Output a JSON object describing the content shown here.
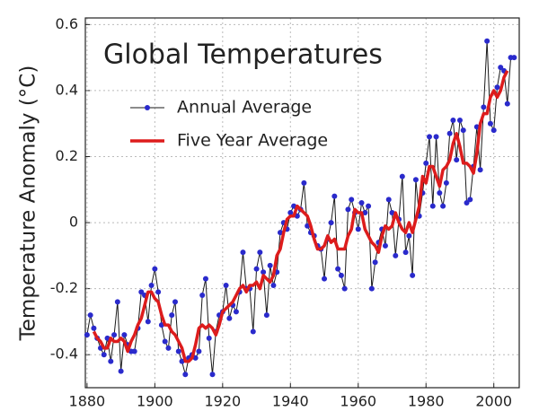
{
  "chart_data": {
    "type": "line",
    "title": "Global Temperatures",
    "y_label": "Temperature Anomaly (°C)",
    "x": [
      1880,
      1881,
      1882,
      1883,
      1884,
      1885,
      1886,
      1887,
      1888,
      1889,
      1890,
      1891,
      1892,
      1893,
      1894,
      1895,
      1896,
      1897,
      1898,
      1899,
      1900,
      1901,
      1902,
      1903,
      1904,
      1905,
      1906,
      1907,
      1908,
      1909,
      1910,
      1911,
      1912,
      1913,
      1914,
      1915,
      1916,
      1917,
      1918,
      1919,
      1920,
      1921,
      1922,
      1923,
      1924,
      1925,
      1926,
      1927,
      1928,
      1929,
      1930,
      1931,
      1932,
      1933,
      1934,
      1935,
      1936,
      1937,
      1938,
      1939,
      1940,
      1941,
      1942,
      1943,
      1944,
      1945,
      1946,
      1947,
      1948,
      1949,
      1950,
      1951,
      1952,
      1953,
      1954,
      1955,
      1956,
      1957,
      1958,
      1959,
      1960,
      1961,
      1962,
      1963,
      1964,
      1965,
      1966,
      1967,
      1968,
      1969,
      1970,
      1971,
      1972,
      1973,
      1974,
      1975,
      1976,
      1977,
      1978,
      1979,
      1980,
      1981,
      1982,
      1983,
      1984,
      1985,
      1986,
      1987,
      1988,
      1989,
      1990,
      1991,
      1992,
      1993,
      1994,
      1995,
      1996,
      1997,
      1998,
      1999,
      2000,
      2001,
      2002,
      2003,
      2004,
      2005,
      2006
    ],
    "series": [
      {
        "name": "Annual Average",
        "color": "#1a1a1a",
        "marker_color": "#2a2acc",
        "values": [
          -0.34,
          -0.28,
          -0.32,
          -0.35,
          -0.38,
          -0.4,
          -0.35,
          -0.42,
          -0.34,
          -0.24,
          -0.45,
          -0.34,
          -0.37,
          -0.39,
          -0.39,
          -0.32,
          -0.21,
          -0.22,
          -0.3,
          -0.19,
          -0.14,
          -0.21,
          -0.31,
          -0.36,
          -0.38,
          -0.28,
          -0.24,
          -0.39,
          -0.42,
          -0.46,
          -0.41,
          -0.4,
          -0.41,
          -0.39,
          -0.22,
          -0.17,
          -0.35,
          -0.46,
          -0.33,
          -0.28,
          -0.27,
          -0.19,
          -0.29,
          -0.25,
          -0.27,
          -0.21,
          -0.09,
          -0.2,
          -0.2,
          -0.33,
          -0.14,
          -0.09,
          -0.15,
          -0.28,
          -0.13,
          -0.19,
          -0.15,
          -0.03,
          0.0,
          -0.02,
          0.03,
          0.05,
          0.02,
          0.04,
          0.12,
          -0.01,
          -0.03,
          -0.04,
          -0.07,
          -0.08,
          -0.17,
          -0.05,
          0.0,
          0.08,
          -0.14,
          -0.16,
          -0.2,
          0.04,
          0.07,
          0.03,
          -0.02,
          0.06,
          0.03,
          0.05,
          -0.2,
          -0.12,
          -0.06,
          -0.02,
          -0.07,
          0.07,
          0.03,
          -0.1,
          0.01,
          0.14,
          -0.09,
          -0.04,
          -0.16,
          0.13,
          0.02,
          0.09,
          0.18,
          0.26,
          0.05,
          0.26,
          0.09,
          0.05,
          0.12,
          0.27,
          0.31,
          0.19,
          0.31,
          0.28,
          0.06,
          0.07,
          0.17,
          0.29,
          0.16,
          0.35,
          0.55,
          0.3,
          0.28,
          0.41,
          0.47,
          0.46,
          0.36,
          0.5,
          0.5
        ]
      },
      {
        "name": "Five Year Average",
        "color": "#dd1c1c",
        "values": [
          null,
          null,
          -0.33,
          -0.35,
          -0.36,
          -0.38,
          -0.38,
          -0.35,
          -0.36,
          -0.36,
          -0.35,
          -0.36,
          -0.39,
          -0.36,
          -0.34,
          -0.31,
          -0.29,
          -0.25,
          -0.21,
          -0.21,
          -0.23,
          -0.24,
          -0.28,
          -0.31,
          -0.31,
          -0.33,
          -0.34,
          -0.36,
          -0.38,
          -0.42,
          -0.42,
          -0.41,
          -0.37,
          -0.32,
          -0.31,
          -0.32,
          -0.31,
          -0.32,
          -0.34,
          -0.31,
          -0.27,
          -0.26,
          -0.25,
          -0.24,
          -0.22,
          -0.2,
          -0.19,
          -0.21,
          -0.19,
          -0.19,
          -0.18,
          -0.2,
          -0.16,
          -0.17,
          -0.18,
          -0.16,
          -0.1,
          -0.08,
          -0.03,
          0.01,
          0.02,
          0.02,
          0.05,
          0.04,
          0.03,
          0.02,
          -0.01,
          -0.05,
          -0.08,
          -0.08,
          -0.07,
          -0.04,
          -0.06,
          -0.05,
          -0.08,
          -0.08,
          -0.08,
          -0.04,
          -0.02,
          0.04,
          0.03,
          0.03,
          -0.02,
          -0.04,
          -0.06,
          -0.07,
          -0.09,
          -0.04,
          -0.01,
          -0.02,
          -0.01,
          0.03,
          0.0,
          -0.02,
          -0.03,
          0.0,
          -0.03,
          0.01,
          0.05,
          0.14,
          0.12,
          0.17,
          0.17,
          0.14,
          0.11,
          0.16,
          0.17,
          0.19,
          0.24,
          0.27,
          0.23,
          0.18,
          0.18,
          0.17,
          0.15,
          0.21,
          0.3,
          0.33,
          0.33,
          0.38,
          0.4,
          0.38,
          0.4,
          0.44,
          0.46,
          null,
          null
        ]
      }
    ],
    "xlim": [
      1879.5,
      2007.5
    ],
    "xticks": [
      1880,
      1900,
      1920,
      1940,
      1960,
      1980,
      2000
    ],
    "ylim": [
      -0.5,
      0.62
    ],
    "yticks": [
      0.6,
      0.4,
      0.2,
      0,
      -0.2,
      -0.4
    ],
    "grid": true,
    "legend": "upper left"
  }
}
